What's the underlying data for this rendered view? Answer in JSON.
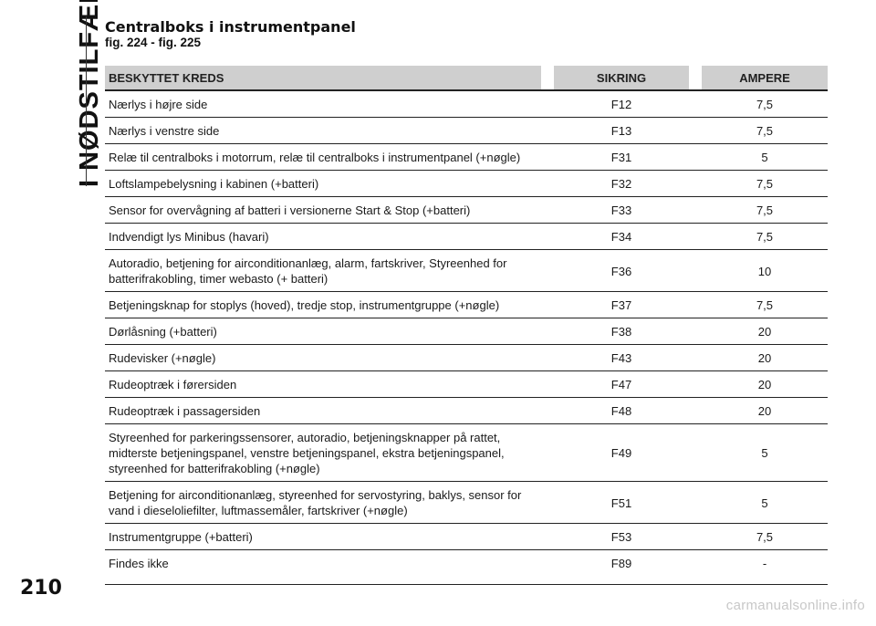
{
  "side_tab": {
    "label": "I NØDSTILFÆLDE"
  },
  "heading": {
    "title": "Centralboks i instrumentpanel",
    "subtitle": "fig. 224 - fig. 225"
  },
  "table": {
    "headers": {
      "description": "BESKYTTET KREDS",
      "fuse": "SIKRING",
      "ampere": "AMPERE"
    },
    "rows": [
      {
        "description": "Nærlys i højre side",
        "fuse": "F12",
        "ampere": "7,5"
      },
      {
        "description": "Nærlys i venstre side",
        "fuse": "F13",
        "ampere": "7,5"
      },
      {
        "description": "Relæ til centralboks i motorrum, relæ til centralboks i instrumentpanel (+nøgle)",
        "fuse": "F31",
        "ampere": "5"
      },
      {
        "description": "Loftslampebelysning i kabinen (+batteri)",
        "fuse": "F32",
        "ampere": "7,5"
      },
      {
        "description": "Sensor for overvågning af batteri i versionerne Start & Stop (+batteri)",
        "fuse": "F33",
        "ampere": "7,5"
      },
      {
        "description": "Indvendigt lys Minibus (havari)",
        "fuse": "F34",
        "ampere": "7,5"
      },
      {
        "description": "Autoradio, betjening for airconditionanlæg, alarm, fartskriver, Styreenhed for\nbatterifrakobling, timer webasto (+ batteri)",
        "fuse": "F36",
        "ampere": "10"
      },
      {
        "description": "Betjeningsknap for stoplys (hoved), tredje stop, instrumentgruppe (+nøgle)",
        "fuse": "F37",
        "ampere": "7,5"
      },
      {
        "description": "Dørlåsning (+batteri)",
        "fuse": "F38",
        "ampere": "20"
      },
      {
        "description": "Rudevisker (+nøgle)",
        "fuse": "F43",
        "ampere": "20"
      },
      {
        "description": "Rudeoptræk i førersiden",
        "fuse": "F47",
        "ampere": "20"
      },
      {
        "description": "Rudeoptræk i passagersiden",
        "fuse": "F48",
        "ampere": "20"
      },
      {
        "description": "Styreenhed for parkeringssensorer, autoradio, betjeningsknapper på rattet,\nmidterste betjeningspanel, venstre betjeningspanel, ekstra betjeningspanel,\nstyreenhed for batterifrakobling (+nøgle)",
        "fuse": "F49",
        "ampere": "5"
      },
      {
        "description": "Betjening for airconditionanlæg, styreenhed for servostyring, baklys, sensor for\nvand i dieseloliefilter, luftmassemåler, fartskriver (+nøgle)",
        "fuse": "F51",
        "ampere": "5"
      },
      {
        "description": "Instrumentgruppe (+batteri)",
        "fuse": "F53",
        "ampere": "7,5"
      },
      {
        "description": "Findes ikke",
        "fuse": "F89",
        "ampere": "-"
      }
    ]
  },
  "footer": {
    "page_number": "210",
    "watermark": "carmanualsonline.info"
  }
}
